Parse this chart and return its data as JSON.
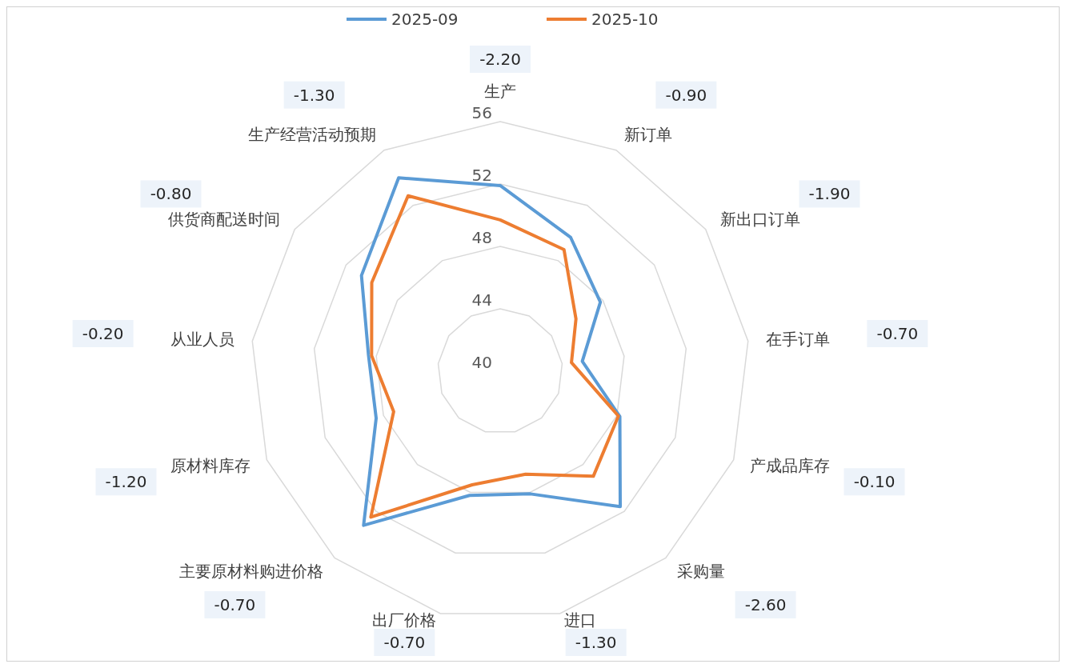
{
  "chart_data": {
    "type": "radar",
    "categories": [
      "生产",
      "新订单",
      "新出口订单",
      "在手订单",
      "产成品库存",
      "采购量",
      "进口",
      "出厂价格",
      "主要原材料购进价格",
      "原材料库存",
      "从业人员",
      "供货商配送时间",
      "生产经营活动预期"
    ],
    "series": [
      {
        "name": "2025-09",
        "color": "#5b9bd5",
        "values": [
          51.9,
          49.7,
          47.8,
          45.3,
          48.2,
          51.6,
          48.1,
          48.2,
          53.2,
          48.5,
          48.5,
          50.8,
          54.0
        ]
      },
      {
        "name": "2025-10",
        "color": "#ed7d31",
        "values": [
          49.7,
          48.8,
          45.9,
          44.6,
          48.1,
          49.0,
          46.8,
          47.5,
          52.5,
          47.3,
          48.3,
          50.0,
          52.7
        ]
      }
    ],
    "ylim": [
      40,
      56
    ],
    "yticks": [
      40,
      44,
      48,
      52,
      56
    ],
    "grid": true,
    "legend": "top",
    "marker": "none",
    "annotations": [
      "-2.20",
      "-0.90",
      "-1.90",
      "-0.70",
      "-0.10",
      "-2.60",
      "-1.30",
      "-0.70",
      "-0.70",
      "-1.20",
      "-0.20",
      "-0.80",
      "-1.30"
    ]
  }
}
